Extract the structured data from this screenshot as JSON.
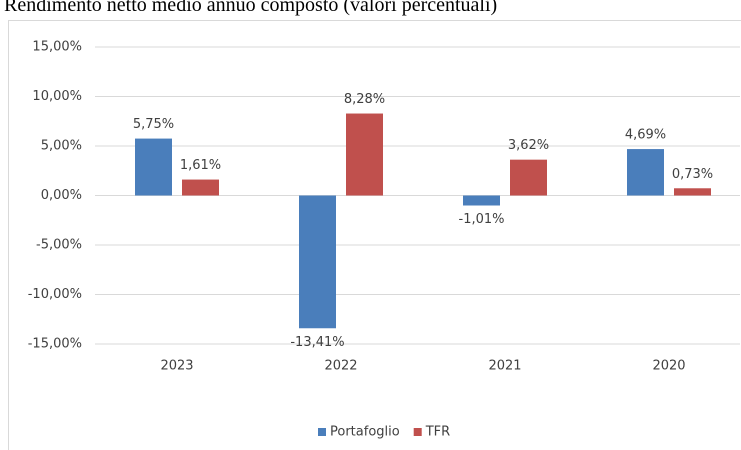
{
  "chart_data": {
    "type": "bar",
    "title": "Rendimento netto medio annuo composto (valori percentuali)",
    "categories": [
      "2023",
      "2022",
      "2021",
      "2020"
    ],
    "series": [
      {
        "name": "Portafoglio",
        "color": "#4a7ebb",
        "values": [
          5.75,
          -13.41,
          -1.01,
          4.69
        ],
        "value_labels": [
          "5,75%",
          "-13,41%",
          "-1,01%",
          "4,69%"
        ]
      },
      {
        "name": "TFR",
        "color": "#c0504d",
        "values": [
          1.61,
          8.28,
          3.62,
          0.73
        ],
        "value_labels": [
          "1,61%",
          "8,28%",
          "3,62%",
          "0,73%"
        ]
      }
    ],
    "ylim": [
      -15,
      15
    ],
    "yticks": [
      {
        "value": -15,
        "label": "-15,00%"
      },
      {
        "value": -10,
        "label": "-10,00%"
      },
      {
        "value": -5,
        "label": "-5,00%"
      },
      {
        "value": 0,
        "label": "0,00%"
      },
      {
        "value": 5,
        "label": "5,00%"
      },
      {
        "value": 10,
        "label": "10,00%"
      },
      {
        "value": 15,
        "label": "15,00%"
      }
    ],
    "grid": true,
    "legend": "bottom"
  }
}
